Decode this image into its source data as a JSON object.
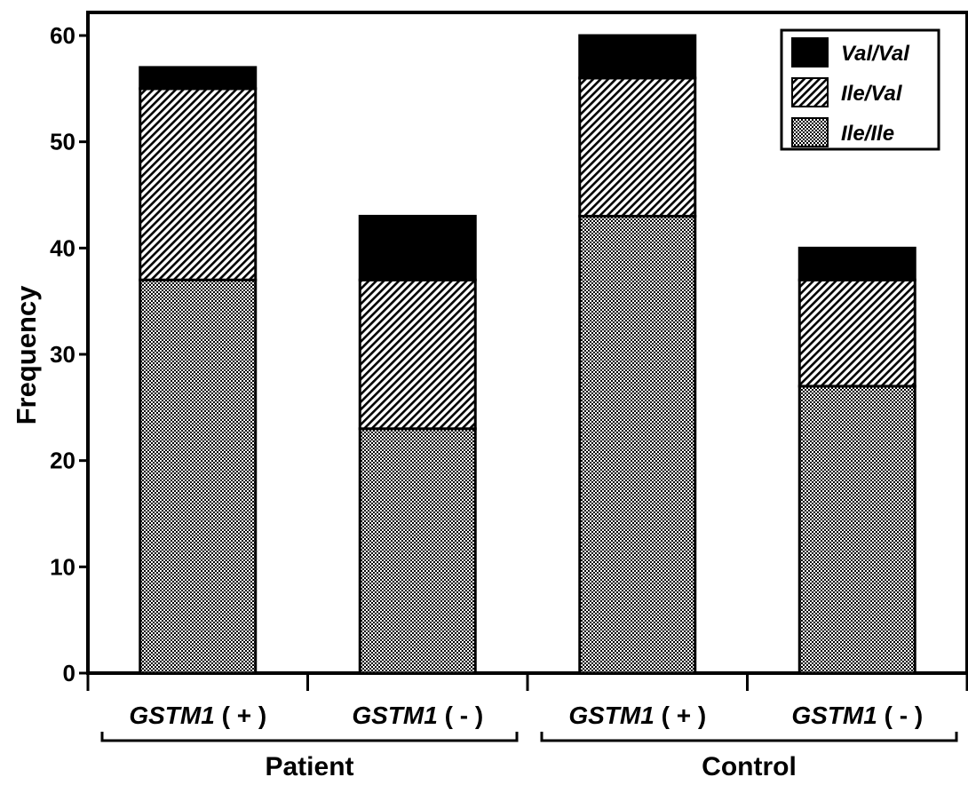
{
  "chart_data": {
    "type": "bar",
    "stacked": true,
    "ylabel": "Frequency",
    "ylim": [
      0,
      60
    ],
    "yticks": [
      0,
      10,
      20,
      30,
      40,
      50,
      60
    ],
    "grid": false,
    "legend_position": "top-right",
    "categories": [
      {
        "gene": "GSTM1",
        "sign": "( + )"
      },
      {
        "gene": "GSTM1",
        "sign": "( - )"
      },
      {
        "gene": "GSTM1",
        "sign": "( + )"
      },
      {
        "gene": "GSTM1",
        "sign": "( - )"
      }
    ],
    "groups": [
      {
        "label": "Patient",
        "categories": [
          0,
          1
        ]
      },
      {
        "label": "Control",
        "categories": [
          2,
          3
        ]
      }
    ],
    "series": [
      {
        "name": "Ile/Ile",
        "values": [
          37,
          23,
          43,
          27
        ],
        "fill": "dots",
        "color": "#8c8c8c"
      },
      {
        "name": "Ile/Val",
        "values": [
          18,
          14,
          13,
          10
        ],
        "fill": "hatch",
        "color": "#ffffff"
      },
      {
        "name": "Val/Val",
        "values": [
          2,
          6,
          4,
          3
        ],
        "fill": "solid",
        "color": "#000000"
      }
    ],
    "legend_order": [
      2,
      1,
      0
    ]
  }
}
